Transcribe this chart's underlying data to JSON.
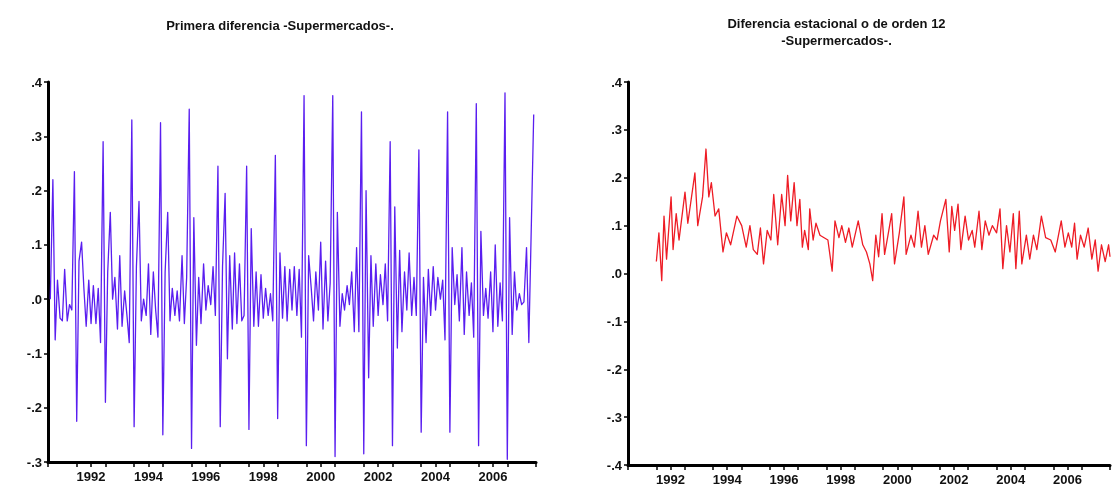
{
  "chart_data": [
    {
      "type": "line",
      "title": "Primera diferencia -Supermercados-.",
      "x": [
        1991.08,
        1991.17,
        1991.25,
        1991.33,
        1991.42,
        1991.5,
        1991.58,
        1991.67,
        1991.75,
        1991.83,
        1991.92,
        1992.0,
        1992.08,
        1992.17,
        1992.25,
        1992.33,
        1992.42,
        1992.5,
        1992.58,
        1992.67,
        1992.75,
        1992.83,
        1992.92,
        1993.0,
        1993.08,
        1993.17,
        1993.25,
        1993.33,
        1993.42,
        1993.5,
        1993.58,
        1993.67,
        1993.75,
        1993.83,
        1993.92,
        1994.0,
        1994.08,
        1994.17,
        1994.25,
        1994.33,
        1994.42,
        1994.5,
        1994.58,
        1994.67,
        1994.75,
        1994.83,
        1994.92,
        1995.0,
        1995.08,
        1995.17,
        1995.25,
        1995.33,
        1995.42,
        1995.5,
        1995.58,
        1995.67,
        1995.75,
        1995.83,
        1995.92,
        1996.0,
        1996.08,
        1996.17,
        1996.25,
        1996.33,
        1996.42,
        1996.5,
        1996.58,
        1996.67,
        1996.75,
        1996.83,
        1996.92,
        1997.0,
        1997.08,
        1997.17,
        1997.25,
        1997.33,
        1997.42,
        1997.5,
        1997.58,
        1997.67,
        1997.75,
        1997.83,
        1997.92,
        1998.0,
        1998.08,
        1998.17,
        1998.25,
        1998.33,
        1998.42,
        1998.5,
        1998.58,
        1998.67,
        1998.75,
        1998.83,
        1998.92,
        1999.0,
        1999.08,
        1999.17,
        1999.25,
        1999.33,
        1999.42,
        1999.5,
        1999.58,
        1999.67,
        1999.75,
        1999.83,
        1999.92,
        2000.0,
        2000.08,
        2000.17,
        2000.25,
        2000.33,
        2000.42,
        2000.5,
        2000.58,
        2000.67,
        2000.75,
        2000.83,
        2000.92,
        2001.0,
        2001.08,
        2001.17,
        2001.25,
        2001.33,
        2001.42,
        2001.5,
        2001.58,
        2001.67,
        2001.75,
        2001.83,
        2001.92,
        2002.0,
        2002.08,
        2002.17,
        2002.25,
        2002.33,
        2002.42,
        2002.5,
        2002.58,
        2002.67,
        2002.75,
        2002.83,
        2002.92,
        2003.0,
        2003.08,
        2003.17,
        2003.25,
        2003.33,
        2003.42,
        2003.5,
        2003.58,
        2003.67,
        2003.75,
        2003.83,
        2003.92,
        2004.0,
        2004.08,
        2004.17,
        2004.25,
        2004.33,
        2004.42,
        2004.5,
        2004.58,
        2004.67,
        2004.75,
        2004.83,
        2004.92,
        2005.0,
        2005.08,
        2005.17,
        2005.25,
        2005.33,
        2005.42,
        2005.5,
        2005.58,
        2005.67,
        2005.75,
        2005.83,
        2005.92,
        2006.0,
        2006.08,
        2006.17,
        2006.25,
        2006.33,
        2006.42,
        2006.5,
        2006.58,
        2006.67,
        2006.75,
        2006.83,
        2006.92,
        2007.0,
        2007.08,
        2007.17,
        2007.25,
        2007.33,
        2007.42,
        2007.5,
        2007.58,
        2007.67,
        2007.75,
        2007.92
      ],
      "series": [
        {
          "color": "#5a1ef0",
          "values": [
            0.0,
            0.22,
            -0.075,
            0.035,
            -0.035,
            -0.04,
            0.055,
            -0.04,
            -0.01,
            -0.02,
            0.235,
            -0.225,
            0.07,
            0.105,
            0.02,
            -0.05,
            0.035,
            -0.045,
            0.025,
            -0.045,
            0.02,
            -0.08,
            0.29,
            -0.19,
            0.05,
            0.16,
            0.0,
            0.04,
            -0.055,
            0.08,
            -0.05,
            0.015,
            -0.03,
            -0.08,
            0.33,
            -0.235,
            0.06,
            0.18,
            -0.04,
            0.0,
            -0.03,
            0.065,
            -0.065,
            0.05,
            -0.02,
            -0.07,
            0.325,
            -0.25,
            0.05,
            0.16,
            -0.04,
            0.02,
            -0.03,
            0.015,
            -0.04,
            0.08,
            -0.045,
            0.04,
            0.35,
            -0.275,
            0.15,
            -0.085,
            0.04,
            -0.045,
            0.065,
            -0.02,
            0.025,
            -0.01,
            0.06,
            -0.03,
            0.245,
            -0.235,
            0.06,
            0.195,
            -0.11,
            0.08,
            -0.055,
            0.085,
            -0.045,
            0.065,
            -0.04,
            -0.03,
            0.245,
            -0.24,
            0.13,
            -0.05,
            0.05,
            -0.05,
            0.045,
            -0.035,
            0.02,
            -0.03,
            0.01,
            -0.04,
            0.265,
            -0.22,
            0.085,
            -0.035,
            0.06,
            -0.04,
            0.055,
            -0.02,
            0.06,
            -0.03,
            0.055,
            -0.07,
            0.375,
            -0.27,
            0.08,
            0.02,
            -0.04,
            0.05,
            -0.02,
            0.105,
            -0.055,
            0.07,
            -0.04,
            0.03,
            0.375,
            -0.29,
            0.16,
            -0.05,
            0.01,
            -0.02,
            0.025,
            -0.01,
            0.05,
            -0.06,
            0.095,
            -0.06,
            0.345,
            -0.285,
            0.2,
            -0.145,
            0.08,
            -0.05,
            0.065,
            -0.03,
            0.045,
            -0.01,
            0.065,
            -0.04,
            0.29,
            -0.27,
            0.17,
            -0.09,
            0.09,
            -0.06,
            0.05,
            -0.02,
            0.085,
            -0.03,
            0.04,
            -0.03,
            0.275,
            -0.245,
            0.04,
            -0.08,
            0.055,
            -0.03,
            0.06,
            -0.02,
            0.04,
            0.0,
            0.035,
            -0.075,
            0.345,
            -0.245,
            0.095,
            -0.01,
            0.045,
            -0.04,
            0.095,
            -0.065,
            0.05,
            -0.03,
            0.03,
            -0.07,
            0.36,
            -0.27,
            0.125,
            -0.03,
            0.02,
            -0.035,
            0.05,
            -0.06,
            0.1,
            -0.05,
            0.03,
            -0.04,
            0.38,
            -0.295,
            0.15,
            -0.065,
            0.05,
            -0.02,
            0.01,
            -0.01,
            -0.005,
            0.095,
            -0.08,
            0.34
          ]
        }
      ],
      "xlim": [
        1991,
        2008
      ],
      "xticks": [
        {
          "value": 1991,
          "label": null
        },
        {
          "value": 1992,
          "label": null
        },
        {
          "value": 1992.5,
          "label": "1992"
        },
        {
          "value": 1993,
          "label": null
        },
        {
          "value": 1994,
          "label": null
        },
        {
          "value": 1994.5,
          "label": "1994"
        },
        {
          "value": 1995,
          "label": null
        },
        {
          "value": 1996,
          "label": null
        },
        {
          "value": 1996.5,
          "label": "1996"
        },
        {
          "value": 1997,
          "label": null
        },
        {
          "value": 1998,
          "label": null
        },
        {
          "value": 1998.5,
          "label": "1998"
        },
        {
          "value": 1999,
          "label": null
        },
        {
          "value": 2000,
          "label": null
        },
        {
          "value": 2000.5,
          "label": "2000"
        },
        {
          "value": 2001,
          "label": null
        },
        {
          "value": 2002,
          "label": null
        },
        {
          "value": 2002.5,
          "label": "2002"
        },
        {
          "value": 2003,
          "label": null
        },
        {
          "value": 2004,
          "label": null
        },
        {
          "value": 2004.5,
          "label": "2004"
        },
        {
          "value": 2005,
          "label": null
        },
        {
          "value": 2006,
          "label": null
        },
        {
          "value": 2006.5,
          "label": "2006"
        },
        {
          "value": 2007,
          "label": null
        },
        {
          "value": 2008,
          "label": null
        }
      ],
      "ylim": [
        -0.3,
        0.4
      ],
      "yticks": [
        {
          "value": -0.3,
          "label": "-.3"
        },
        {
          "value": -0.2,
          "label": "-.2"
        },
        {
          "value": -0.1,
          "label": "-.1"
        },
        {
          "value": 0,
          "label": ".0"
        },
        {
          "value": 0.1,
          "label": ".1"
        },
        {
          "value": 0.2,
          "label": ".2"
        },
        {
          "value": 0.3,
          "label": ".3"
        },
        {
          "value": 0.4,
          "label": ".4"
        }
      ]
    },
    {
      "type": "line",
      "title": "Diferencia estacional o de orden 12\n-Supermercados-.",
      "x": [
        1992.0,
        1992.09,
        1992.19,
        1992.27,
        1992.36,
        1992.52,
        1992.59,
        1992.7,
        1992.8,
        1993.01,
        1993.11,
        1993.36,
        1993.46,
        1993.63,
        1993.75,
        1993.85,
        1993.94,
        1994.07,
        1994.2,
        1994.35,
        1994.47,
        1994.62,
        1994.84,
        1995.01,
        1995.17,
        1995.3,
        1995.42,
        1995.56,
        1995.67,
        1995.78,
        1995.91,
        1996.04,
        1996.14,
        1996.28,
        1996.42,
        1996.54,
        1996.63,
        1996.74,
        1996.86,
        1996.96,
        1997.06,
        1997.15,
        1997.23,
        1997.36,
        1997.41,
        1997.53,
        1997.63,
        1997.77,
        1998.05,
        1998.2,
        1998.3,
        1998.44,
        1998.54,
        1998.67,
        1998.79,
        1998.91,
        1999.12,
        1999.28,
        1999.41,
        1999.53,
        1999.63,
        1999.74,
        1999.84,
        1999.96,
        2000.05,
        2000.17,
        2000.3,
        2000.4,
        2000.57,
        2000.73,
        2000.81,
        2000.98,
        2001.1,
        2001.23,
        2001.35,
        2001.47,
        2001.59,
        2001.78,
        2001.9,
        2002.02,
        2002.21,
        2002.33,
        2002.42,
        2002.52,
        2002.64,
        2002.74,
        2002.89,
        2003.01,
        2003.14,
        2003.23,
        2003.38,
        2003.48,
        2003.6,
        2003.73,
        2003.85,
        2004.0,
        2004.12,
        2004.22,
        2004.35,
        2004.47,
        2004.59,
        2004.68,
        2004.8,
        2004.89,
        2005.05,
        2005.17,
        2005.3,
        2005.42,
        2005.58,
        2005.73,
        2005.91,
        2006.07,
        2006.28,
        2006.41,
        2006.53,
        2006.65,
        2006.75,
        2006.84,
        2006.96,
        2007.09,
        2007.23,
        2007.36,
        2007.48,
        2007.58,
        2007.7,
        2007.83,
        2007.95,
        2008.0
      ],
      "series": [
        {
          "color": "#ee1c25",
          "values": [
            0.025,
            0.085,
            -0.015,
            0.12,
            0.03,
            0.16,
            0.05,
            0.125,
            0.07,
            0.17,
            0.105,
            0.21,
            0.1,
            0.16,
            0.26,
            0.16,
            0.19,
            0.12,
            0.135,
            0.045,
            0.085,
            0.06,
            0.12,
            0.1,
            0.055,
            0.1,
            0.05,
            0.04,
            0.095,
            0.02,
            0.09,
            0.07,
            0.165,
            0.06,
            0.165,
            0.1,
            0.205,
            0.11,
            0.19,
            0.1,
            0.155,
            0.055,
            0.09,
            0.05,
            0.135,
            0.07,
            0.105,
            0.08,
            0.07,
            0.005,
            0.11,
            0.075,
            0.1,
            0.065,
            0.095,
            0.055,
            0.11,
            0.06,
            0.045,
            0.02,
            -0.015,
            0.08,
            0.035,
            0.125,
            0.04,
            0.08,
            0.125,
            0.02,
            0.085,
            0.16,
            0.04,
            0.08,
            0.055,
            0.13,
            0.055,
            0.1,
            0.04,
            0.08,
            0.07,
            0.11,
            0.155,
            0.045,
            0.14,
            0.09,
            0.145,
            0.05,
            0.12,
            0.07,
            0.09,
            0.055,
            0.13,
            0.05,
            0.11,
            0.08,
            0.1,
            0.085,
            0.135,
            0.01,
            0.1,
            0.045,
            0.125,
            0.01,
            0.13,
            0.02,
            0.08,
            0.03,
            0.08,
            0.05,
            0.12,
            0.075,
            0.07,
            0.045,
            0.11,
            0.055,
            0.085,
            0.055,
            0.105,
            0.03,
            0.08,
            0.055,
            0.095,
            0.03,
            0.07,
            0.005,
            0.06,
            0.025,
            0.06,
            0.035
          ]
        }
      ],
      "xlim": [
        1991,
        2008
      ],
      "xticks": [
        {
          "value": 1991,
          "label": null
        },
        {
          "value": 1992,
          "label": null
        },
        {
          "value": 1992.5,
          "label": "1992"
        },
        {
          "value": 1993,
          "label": null
        },
        {
          "value": 1994,
          "label": null
        },
        {
          "value": 1994.5,
          "label": "1994"
        },
        {
          "value": 1995,
          "label": null
        },
        {
          "value": 1996,
          "label": null
        },
        {
          "value": 1996.5,
          "label": "1996"
        },
        {
          "value": 1997,
          "label": null
        },
        {
          "value": 1998,
          "label": null
        },
        {
          "value": 1998.5,
          "label": "1998"
        },
        {
          "value": 1999,
          "label": null
        },
        {
          "value": 2000,
          "label": null
        },
        {
          "value": 2000.5,
          "label": "2000"
        },
        {
          "value": 2001,
          "label": null
        },
        {
          "value": 2002,
          "label": null
        },
        {
          "value": 2002.5,
          "label": "2002"
        },
        {
          "value": 2003,
          "label": null
        },
        {
          "value": 2004,
          "label": null
        },
        {
          "value": 2004.5,
          "label": "2004"
        },
        {
          "value": 2005,
          "label": null
        },
        {
          "value": 2006,
          "label": null
        },
        {
          "value": 2006.5,
          "label": "2006"
        },
        {
          "value": 2007,
          "label": null
        },
        {
          "value": 2008,
          "label": null
        }
      ],
      "ylim": [
        -0.4,
        0.4
      ],
      "yticks": [
        {
          "value": -0.4,
          "label": "-.4"
        },
        {
          "value": -0.3,
          "label": "-.3"
        },
        {
          "value": -0.2,
          "label": "-.2"
        },
        {
          "value": -0.1,
          "label": "-.1"
        },
        {
          "value": 0,
          "label": ".0"
        },
        {
          "value": 0.1,
          "label": ".1"
        },
        {
          "value": 0.2,
          "label": ".2"
        },
        {
          "value": 0.3,
          "label": ".3"
        },
        {
          "value": 0.4,
          "label": ".4"
        }
      ]
    }
  ]
}
